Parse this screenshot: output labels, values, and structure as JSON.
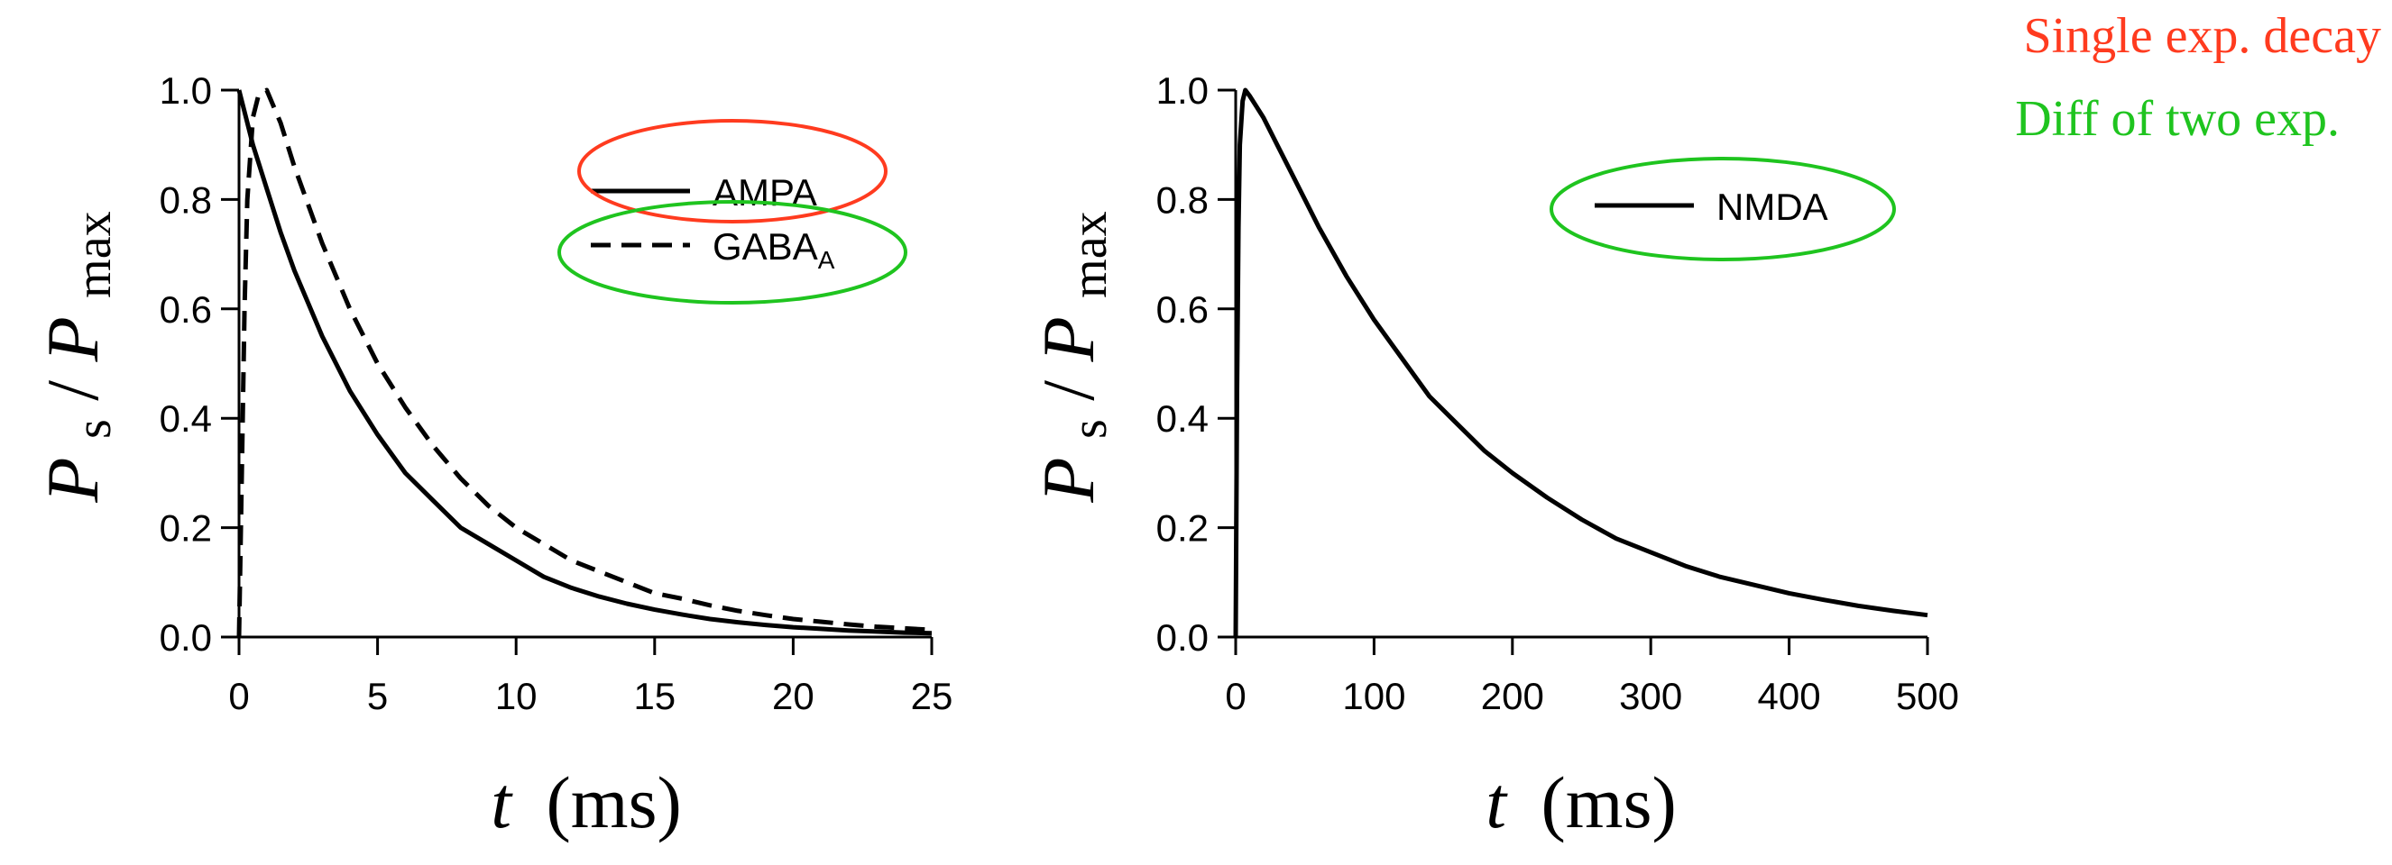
{
  "chart_data": [
    {
      "type": "line",
      "x_range": [
        0,
        25
      ],
      "y_range": [
        0,
        1
      ],
      "x_ticks": [
        0,
        5,
        10,
        15,
        20,
        25
      ],
      "y_ticks": [
        0.0,
        0.2,
        0.4,
        0.6,
        0.8,
        1.0
      ],
      "x_tick_labels": [
        "0",
        "5",
        "10",
        "15",
        "20",
        "25"
      ],
      "y_tick_labels": [
        "0.0",
        "0.2",
        "0.4",
        "0.6",
        "0.8",
        "1.0"
      ],
      "xlabel": {
        "var": "t",
        "unit": "(ms)"
      },
      "ylabel": {
        "num": "P",
        "num_sub": "s",
        "slash": "/",
        "den": "P",
        "den_sub": "max"
      },
      "grid": false,
      "legend_position": "top-right",
      "series": [
        {
          "name": "AMPA",
          "line_style": "solid",
          "x": [
            0,
            0.5,
            1,
            1.5,
            2,
            2.5,
            3,
            4,
            5,
            6,
            7,
            8,
            9,
            10,
            11,
            12,
            13,
            14,
            15,
            16,
            17,
            18,
            19,
            20,
            21,
            22,
            23,
            24,
            25
          ],
          "y": [
            1.0,
            0.9,
            0.82,
            0.74,
            0.67,
            0.61,
            0.55,
            0.45,
            0.37,
            0.3,
            0.25,
            0.2,
            0.17,
            0.14,
            0.11,
            0.09,
            0.074,
            0.061,
            0.05,
            0.041,
            0.033,
            0.027,
            0.022,
            0.018,
            0.015,
            0.012,
            0.01,
            0.008,
            0.007
          ]
        },
        {
          "name": "GABA",
          "name_sub": "A",
          "line_style": "dashed",
          "x": [
            0,
            0.1,
            0.2,
            0.3,
            0.5,
            0.7,
            1,
            1.5,
            2,
            2.5,
            3,
            4,
            5,
            6,
            7,
            8,
            9,
            10,
            11,
            12,
            13,
            14,
            15,
            16,
            17,
            18,
            19,
            20,
            21,
            22,
            23,
            24,
            25
          ],
          "y": [
            0.0,
            0.3,
            0.6,
            0.8,
            0.95,
            0.99,
            1.0,
            0.94,
            0.86,
            0.79,
            0.72,
            0.6,
            0.5,
            0.42,
            0.35,
            0.29,
            0.24,
            0.2,
            0.17,
            0.14,
            0.12,
            0.1,
            0.08,
            0.07,
            0.058,
            0.048,
            0.04,
            0.033,
            0.028,
            0.023,
            0.019,
            0.016,
            0.013
          ]
        }
      ]
    },
    {
      "type": "line",
      "x_range": [
        0,
        500
      ],
      "y_range": [
        0,
        1
      ],
      "x_ticks": [
        0,
        100,
        200,
        300,
        400,
        500
      ],
      "y_ticks": [
        0.0,
        0.2,
        0.4,
        0.6,
        0.8,
        1.0
      ],
      "x_tick_labels": [
        "0",
        "100",
        "200",
        "300",
        "400",
        "500"
      ],
      "y_tick_labels": [
        "0.0",
        "0.2",
        "0.4",
        "0.6",
        "0.8",
        "1.0"
      ],
      "xlabel": {
        "var": "t",
        "unit": "(ms)"
      },
      "ylabel": {
        "num": "P",
        "num_sub": "s",
        "slash": "/",
        "den": "P",
        "den_sub": "max"
      },
      "grid": false,
      "legend_position": "top-right",
      "series": [
        {
          "name": "NMDA",
          "line_style": "solid",
          "x": [
            0,
            1,
            2,
            3,
            5,
            7,
            10,
            15,
            20,
            30,
            40,
            50,
            60,
            80,
            100,
            120,
            140,
            160,
            180,
            200,
            225,
            250,
            275,
            300,
            325,
            350,
            375,
            400,
            425,
            450,
            475,
            500
          ],
          "y": [
            0.0,
            0.45,
            0.75,
            0.9,
            0.98,
            1.0,
            0.99,
            0.97,
            0.95,
            0.9,
            0.85,
            0.8,
            0.75,
            0.66,
            0.58,
            0.51,
            0.44,
            0.39,
            0.34,
            0.3,
            0.255,
            0.215,
            0.18,
            0.155,
            0.13,
            0.11,
            0.095,
            0.08,
            0.068,
            0.057,
            0.048,
            0.04
          ]
        }
      ]
    }
  ],
  "annotations": {
    "single_exp": {
      "text": "Single exp. decay",
      "color": "#ff3b1f"
    },
    "diff_exp": {
      "text": "Diff of two exp.",
      "color": "#1fc41f"
    }
  }
}
